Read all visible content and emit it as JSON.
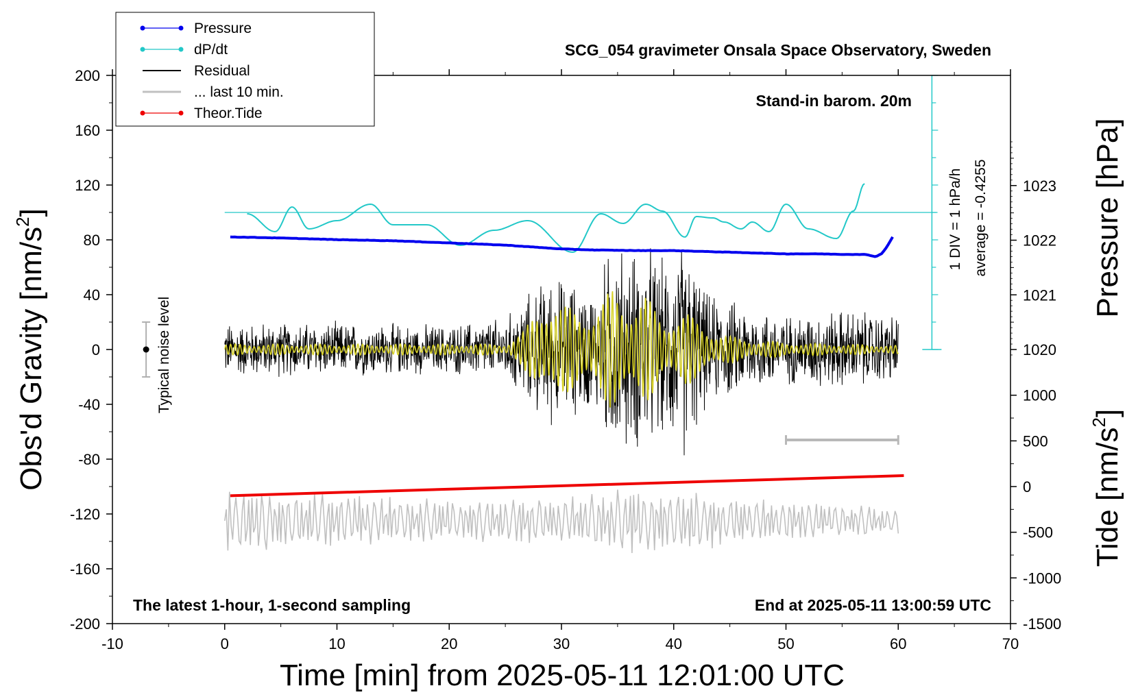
{
  "chart_data": {
    "type": "line",
    "title": "SCG_054 gravimeter Onsala Space Observatory, Sweden",
    "xlabel": "Time [min] from 2025-05-11 12:01:00 UTC",
    "ylabel_main": "Obs'd Gravity [nm/s",
    "ylabel_main_sup": "2",
    "ylabel_main_tail": "]",
    "ylabel_pressure": "Pressure [hPa]",
    "ylabel_tide": "Tide [nm/s",
    "ylabel_tide_sup": "2",
    "ylabel_tide_tail": "]",
    "xlim": [
      -10,
      70
    ],
    "ylim": [
      -200,
      200
    ],
    "x_ticks": [
      "-10",
      "0",
      "10",
      "20",
      "30",
      "40",
      "50",
      "60",
      "70"
    ],
    "y_ticks": [
      "200",
      "160",
      "120",
      "80",
      "40",
      "0",
      "-40",
      "-80",
      "-120",
      "-160",
      "-200"
    ],
    "pressure_ticks": [
      "1023",
      "1022",
      "1021",
      "1020"
    ],
    "tide_ticks": [
      "1000",
      "500",
      "0",
      "-500",
      "-1000",
      "-1500"
    ],
    "annotations": {
      "stand_in": "Stand-in barom. 20m",
      "div": "1 DIV = 1 hPa/h",
      "average": "average = -0.4255",
      "noise": "Typical noise level",
      "latest": "The latest 1-hour, 1-second sampling",
      "end": "End at 2025-05-11 13:00:59 UTC"
    },
    "legend": [
      {
        "name": "Pressure",
        "color": "#0000ee",
        "marker": true
      },
      {
        "name": "dP/dt",
        "color": "#22c8c8",
        "marker": true
      },
      {
        "name": "Residual",
        "color": "#000000",
        "marker": false
      },
      {
        "name": "... last 10 min.",
        "color": "#c0c0c0",
        "marker": false
      },
      {
        "name": "Theor.Tide",
        "color": "#ee0000",
        "marker": true
      }
    ],
    "series": [
      {
        "name": "Pressure",
        "axis": "pressure_hPa",
        "x": [
          0.5,
          5,
          10,
          15,
          20,
          25,
          30,
          33,
          37,
          40,
          45,
          50,
          53,
          55,
          57,
          58,
          58.5,
          59,
          59.5
        ],
        "values": [
          1022.06,
          1022.04,
          1022.01,
          1021.99,
          1021.95,
          1021.91,
          1021.84,
          1021.82,
          1021.81,
          1021.81,
          1021.78,
          1021.75,
          1021.75,
          1021.74,
          1021.74,
          1021.7,
          1021.75,
          1021.88,
          1022.06
        ]
      },
      {
        "name": "dP/dt",
        "axis": "gravity_plot_units",
        "x": [
          2,
          4.5,
          6,
          7.5,
          10,
          13,
          15,
          18,
          21,
          24,
          27,
          31,
          33.5,
          35.5,
          37.5,
          39,
          41,
          42,
          43.5,
          44.5,
          46,
          47,
          48.5,
          50,
          52,
          54.5,
          56,
          57
        ],
        "values": [
          99,
          86,
          104,
          88,
          94,
          106,
          91,
          91,
          76,
          87,
          94,
          71,
          99,
          92,
          106,
          101,
          82,
          97,
          96,
          93,
          88,
          93,
          86,
          106,
          88,
          81,
          101,
          121
        ]
      },
      {
        "name": "Theor.Tide",
        "axis": "tide_nm_s2",
        "x": [
          0.5,
          60.5
        ],
        "values": [
          -100,
          120
        ]
      },
      {
        "name": "Residual",
        "axis": "gravity_nm_s2",
        "envelope": true,
        "x": [
          0,
          10,
          20,
          25,
          27,
          29,
          31,
          33,
          34.5,
          36,
          37.5,
          39,
          41,
          43,
          45,
          50,
          55,
          60
        ],
        "values": [
          22,
          22,
          20,
          26,
          45,
          62,
          55,
          50,
          90,
          80,
          88,
          72,
          90,
          45,
          40,
          28,
          33,
          28
        ]
      },
      {
        "name": "Low-pass residual",
        "axis": "gravity_nm_s2",
        "envelope": true,
        "x": [
          0,
          10,
          20,
          25,
          26.5,
          28.5,
          30,
          31.5,
          33,
          34.5,
          36,
          37.5,
          39,
          41,
          42.5,
          44,
          46,
          50,
          55,
          60
        ],
        "values": [
          4,
          4,
          4,
          4,
          12,
          38,
          32,
          30,
          28,
          45,
          35,
          40,
          22,
          28,
          18,
          12,
          8,
          5,
          4,
          3
        ]
      },
      {
        "name": "... last 10 min.",
        "axis": "gravity_plot_units",
        "envelope": true,
        "x": [
          0,
          10,
          20,
          30,
          35,
          40,
          45,
          50,
          55,
          60
        ],
        "values": [
          25,
          20,
          16,
          18,
          25,
          25,
          18,
          15,
          12,
          10
        ]
      }
    ],
    "noise_bar": {
      "x": -7,
      "y": 0,
      "half_range": 20
    },
    "scale_bar": {
      "x0": 50,
      "x1": 60,
      "y": -66
    }
  }
}
